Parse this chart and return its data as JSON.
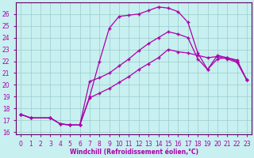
{
  "xlabel": "Windchill (Refroidissement éolien,°C)",
  "bg_color": "#c8f0f0",
  "line_color": "#aa00aa",
  "grid_color": "#99cccc",
  "spine_color": "#660066",
  "xlim": [
    -0.5,
    23.5
  ],
  "ylim": [
    15.8,
    27.0
  ],
  "yticks": [
    16,
    17,
    18,
    19,
    20,
    21,
    22,
    23,
    24,
    25,
    26
  ],
  "xticks": [
    0,
    1,
    2,
    3,
    4,
    5,
    6,
    7,
    8,
    9,
    10,
    11,
    12,
    13,
    14,
    15,
    16,
    17,
    18,
    19,
    20,
    21,
    22,
    23
  ],
  "line1_x": [
    0,
    1,
    3,
    4,
    5,
    6,
    7,
    8,
    9,
    10,
    11,
    12,
    13,
    14,
    15,
    16,
    17,
    18,
    19,
    20,
    21,
    22,
    23
  ],
  "line1_y": [
    17.5,
    17.2,
    17.2,
    16.7,
    16.6,
    16.6,
    18.9,
    19.3,
    19.7,
    20.2,
    20.7,
    21.3,
    21.8,
    22.3,
    23.0,
    22.8,
    22.7,
    22.5,
    22.3,
    22.4,
    22.2,
    21.9,
    20.4
  ],
  "line2_x": [
    0,
    1,
    3,
    4,
    5,
    6,
    7,
    8,
    9,
    10,
    11,
    12,
    13,
    14,
    15,
    16,
    17,
    18,
    19,
    20,
    21,
    22,
    23
  ],
  "line2_y": [
    17.5,
    17.2,
    17.2,
    16.7,
    16.6,
    16.6,
    20.3,
    20.6,
    21.0,
    21.6,
    22.2,
    22.9,
    23.5,
    24.0,
    24.5,
    24.3,
    24.0,
    22.2,
    21.3,
    22.2,
    22.3,
    22.0,
    20.4
  ],
  "line3_x": [
    0,
    1,
    3,
    4,
    5,
    6,
    7,
    8,
    9,
    10,
    11,
    12,
    13,
    14,
    15,
    16,
    17,
    18,
    19,
    20,
    21,
    22,
    23
  ],
  "line3_y": [
    17.5,
    17.2,
    17.2,
    16.7,
    16.6,
    16.6,
    19.0,
    22.0,
    24.8,
    25.8,
    25.9,
    26.0,
    26.3,
    26.6,
    26.5,
    26.2,
    25.3,
    22.7,
    21.3,
    22.5,
    22.3,
    22.1,
    20.4
  ],
  "marker": "+",
  "markersize": 3,
  "linewidth": 0.9,
  "tick_fontsize": 5.5,
  "xlabel_fontsize": 5.5
}
